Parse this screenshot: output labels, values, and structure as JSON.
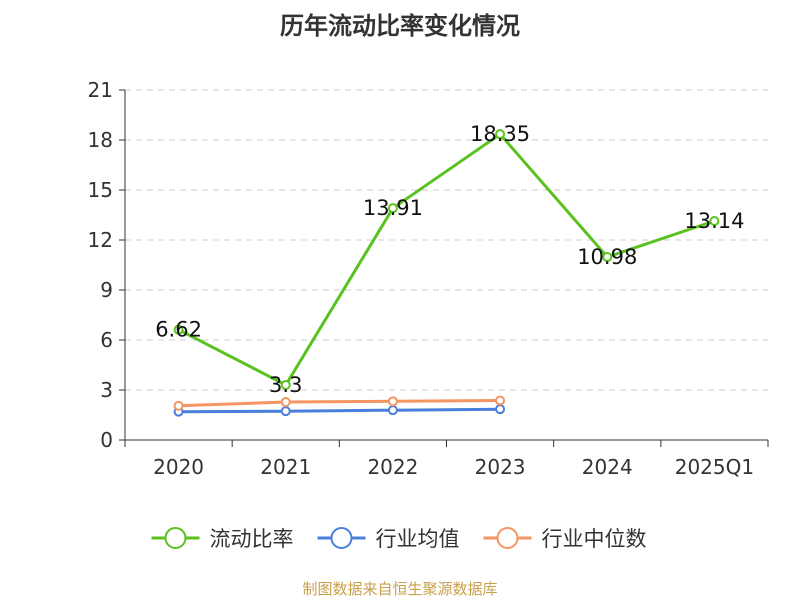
{
  "chart_data": {
    "type": "line",
    "title": "历年流动比率变化情况",
    "categories": [
      "2020",
      "2021",
      "2022",
      "2023",
      "2024",
      "2025Q1"
    ],
    "ylim": [
      0,
      21
    ],
    "yticks": [
      0,
      3,
      6,
      9,
      12,
      15,
      18,
      21
    ],
    "grid": true,
    "legend_position": "bottom",
    "series": [
      {
        "name": "流动比率",
        "color": "#5ac21f",
        "values": [
          6.62,
          3.3,
          13.91,
          18.35,
          10.98,
          13.14
        ],
        "labels": [
          "6.62",
          "3.3",
          "13.91",
          "18.35",
          "10.98",
          "13.14"
        ],
        "show_labels": true
      },
      {
        "name": "行业均值",
        "color": "#4a7fdd",
        "values": [
          1.7,
          1.73,
          1.79,
          1.85,
          null,
          null
        ],
        "show_labels": false
      },
      {
        "name": "行业中位数",
        "color": "#f49562",
        "values": [
          2.05,
          2.28,
          2.32,
          2.37,
          null,
          null
        ],
        "show_labels": false
      }
    ]
  },
  "source_note": "制图数据来自恒生聚源数据库"
}
